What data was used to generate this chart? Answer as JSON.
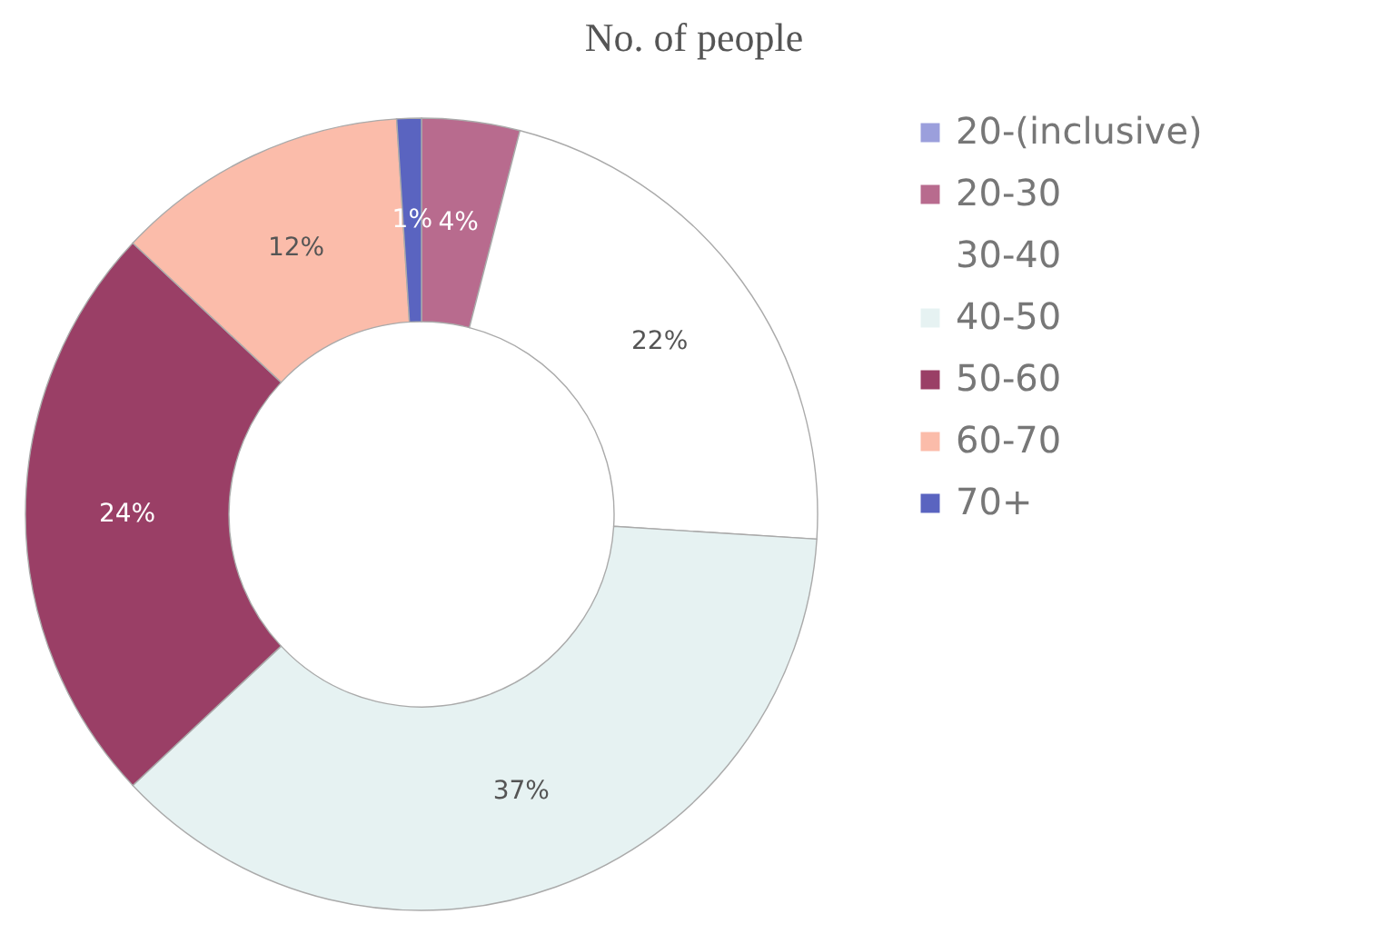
{
  "chart_data": {
    "type": "donut",
    "title": "No. of people",
    "categories": [
      "20-(inclusive)",
      "20-30",
      "30-40",
      "40-50",
      "50-60",
      "60-70",
      "70+"
    ],
    "values": [
      0,
      4,
      22,
      37,
      24,
      12,
      1
    ],
    "colors": [
      "#9b9fdc",
      "#b86b8e",
      "#ffffff",
      "#e6f2f2",
      "#9a3f66",
      "#fbbcaa",
      "#5a64c0"
    ],
    "value_labels": [
      null,
      "4%",
      "22%",
      "37%",
      "24%",
      "12%",
      "1%"
    ],
    "legend": "right"
  }
}
